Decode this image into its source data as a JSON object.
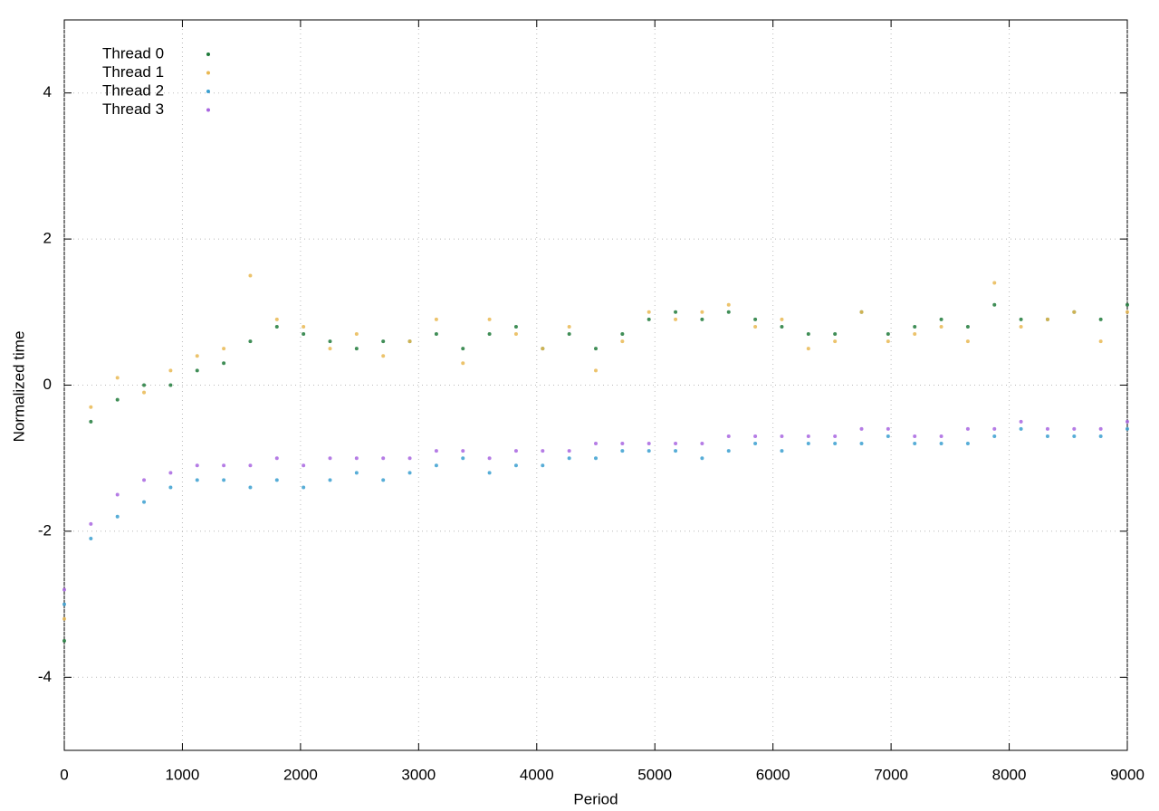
{
  "chart_data": {
    "type": "scatter",
    "xlabel": "Period",
    "ylabel": "Normalized time",
    "xlim": [
      0,
      9000
    ],
    "ylim": [
      -5,
      5
    ],
    "xticks": [
      0,
      1000,
      2000,
      3000,
      4000,
      5000,
      6000,
      7000,
      8000,
      9000
    ],
    "yticks": [
      -4,
      -2,
      0,
      2,
      4
    ],
    "grid": true,
    "legend": "top left",
    "x": [
      0,
      225,
      450,
      675,
      900,
      1125,
      1350,
      1575,
      1800,
      2025,
      2250,
      2475,
      2700,
      2925,
      3150,
      3375,
      3600,
      3825,
      4050,
      4275,
      4500,
      4725,
      4950,
      5175,
      5400,
      5625,
      5850,
      6075,
      6300,
      6525,
      6750,
      6975,
      7200,
      7425,
      7650,
      7875,
      8100,
      8325,
      8550,
      8775,
      9000
    ],
    "series": [
      {
        "name": "Thread 0",
        "color": "#1f7a3a",
        "values": [
          -3.5,
          -0.5,
          -0.2,
          0.0,
          0.0,
          0.2,
          0.3,
          0.6,
          0.8,
          0.7,
          0.6,
          0.5,
          0.6,
          0.6,
          0.7,
          0.5,
          0.7,
          0.8,
          0.5,
          0.7,
          0.5,
          0.7,
          0.9,
          1.0,
          0.9,
          1.0,
          0.9,
          0.8,
          0.7,
          0.7,
          1.0,
          0.7,
          0.8,
          0.9,
          0.8,
          1.1,
          0.9,
          0.9,
          1.0,
          0.9,
          1.1
        ]
      },
      {
        "name": "Thread 1",
        "color": "#e9b852",
        "values": [
          -3.2,
          -0.3,
          0.1,
          -0.1,
          0.2,
          0.4,
          0.5,
          1.5,
          0.9,
          0.8,
          0.5,
          0.7,
          0.4,
          0.6,
          0.9,
          0.3,
          0.9,
          0.7,
          0.5,
          0.8,
          0.2,
          0.6,
          1.0,
          0.9,
          1.0,
          1.1,
          0.8,
          0.9,
          0.5,
          0.6,
          1.0,
          0.6,
          0.7,
          0.8,
          0.6,
          1.4,
          0.8,
          0.9,
          1.0,
          0.6,
          1.0
        ]
      },
      {
        "name": "Thread 2",
        "color": "#3a9fd0",
        "values": [
          -3.0,
          -2.1,
          -1.8,
          -1.6,
          -1.4,
          -1.3,
          -1.3,
          -1.4,
          -1.3,
          -1.4,
          -1.3,
          -1.2,
          -1.3,
          -1.2,
          -1.1,
          -1.0,
          -1.2,
          -1.1,
          -1.1,
          -1.0,
          -1.0,
          -0.9,
          -0.9,
          -0.9,
          -1.0,
          -0.9,
          -0.8,
          -0.9,
          -0.8,
          -0.8,
          -0.8,
          -0.7,
          -0.8,
          -0.8,
          -0.8,
          -0.7,
          -0.6,
          -0.7,
          -0.7,
          -0.7,
          -0.6
        ]
      },
      {
        "name": "Thread 3",
        "color": "#a865e0",
        "values": [
          -2.8,
          -1.9,
          -1.5,
          -1.3,
          -1.2,
          -1.1,
          -1.1,
          -1.1,
          -1.0,
          -1.1,
          -1.0,
          -1.0,
          -1.0,
          -1.0,
          -0.9,
          -0.9,
          -1.0,
          -0.9,
          -0.9,
          -0.9,
          -0.8,
          -0.8,
          -0.8,
          -0.8,
          -0.8,
          -0.7,
          -0.7,
          -0.7,
          -0.7,
          -0.7,
          -0.6,
          -0.6,
          -0.7,
          -0.7,
          -0.6,
          -0.6,
          -0.5,
          -0.6,
          -0.6,
          -0.6,
          -0.5
        ]
      }
    ]
  }
}
